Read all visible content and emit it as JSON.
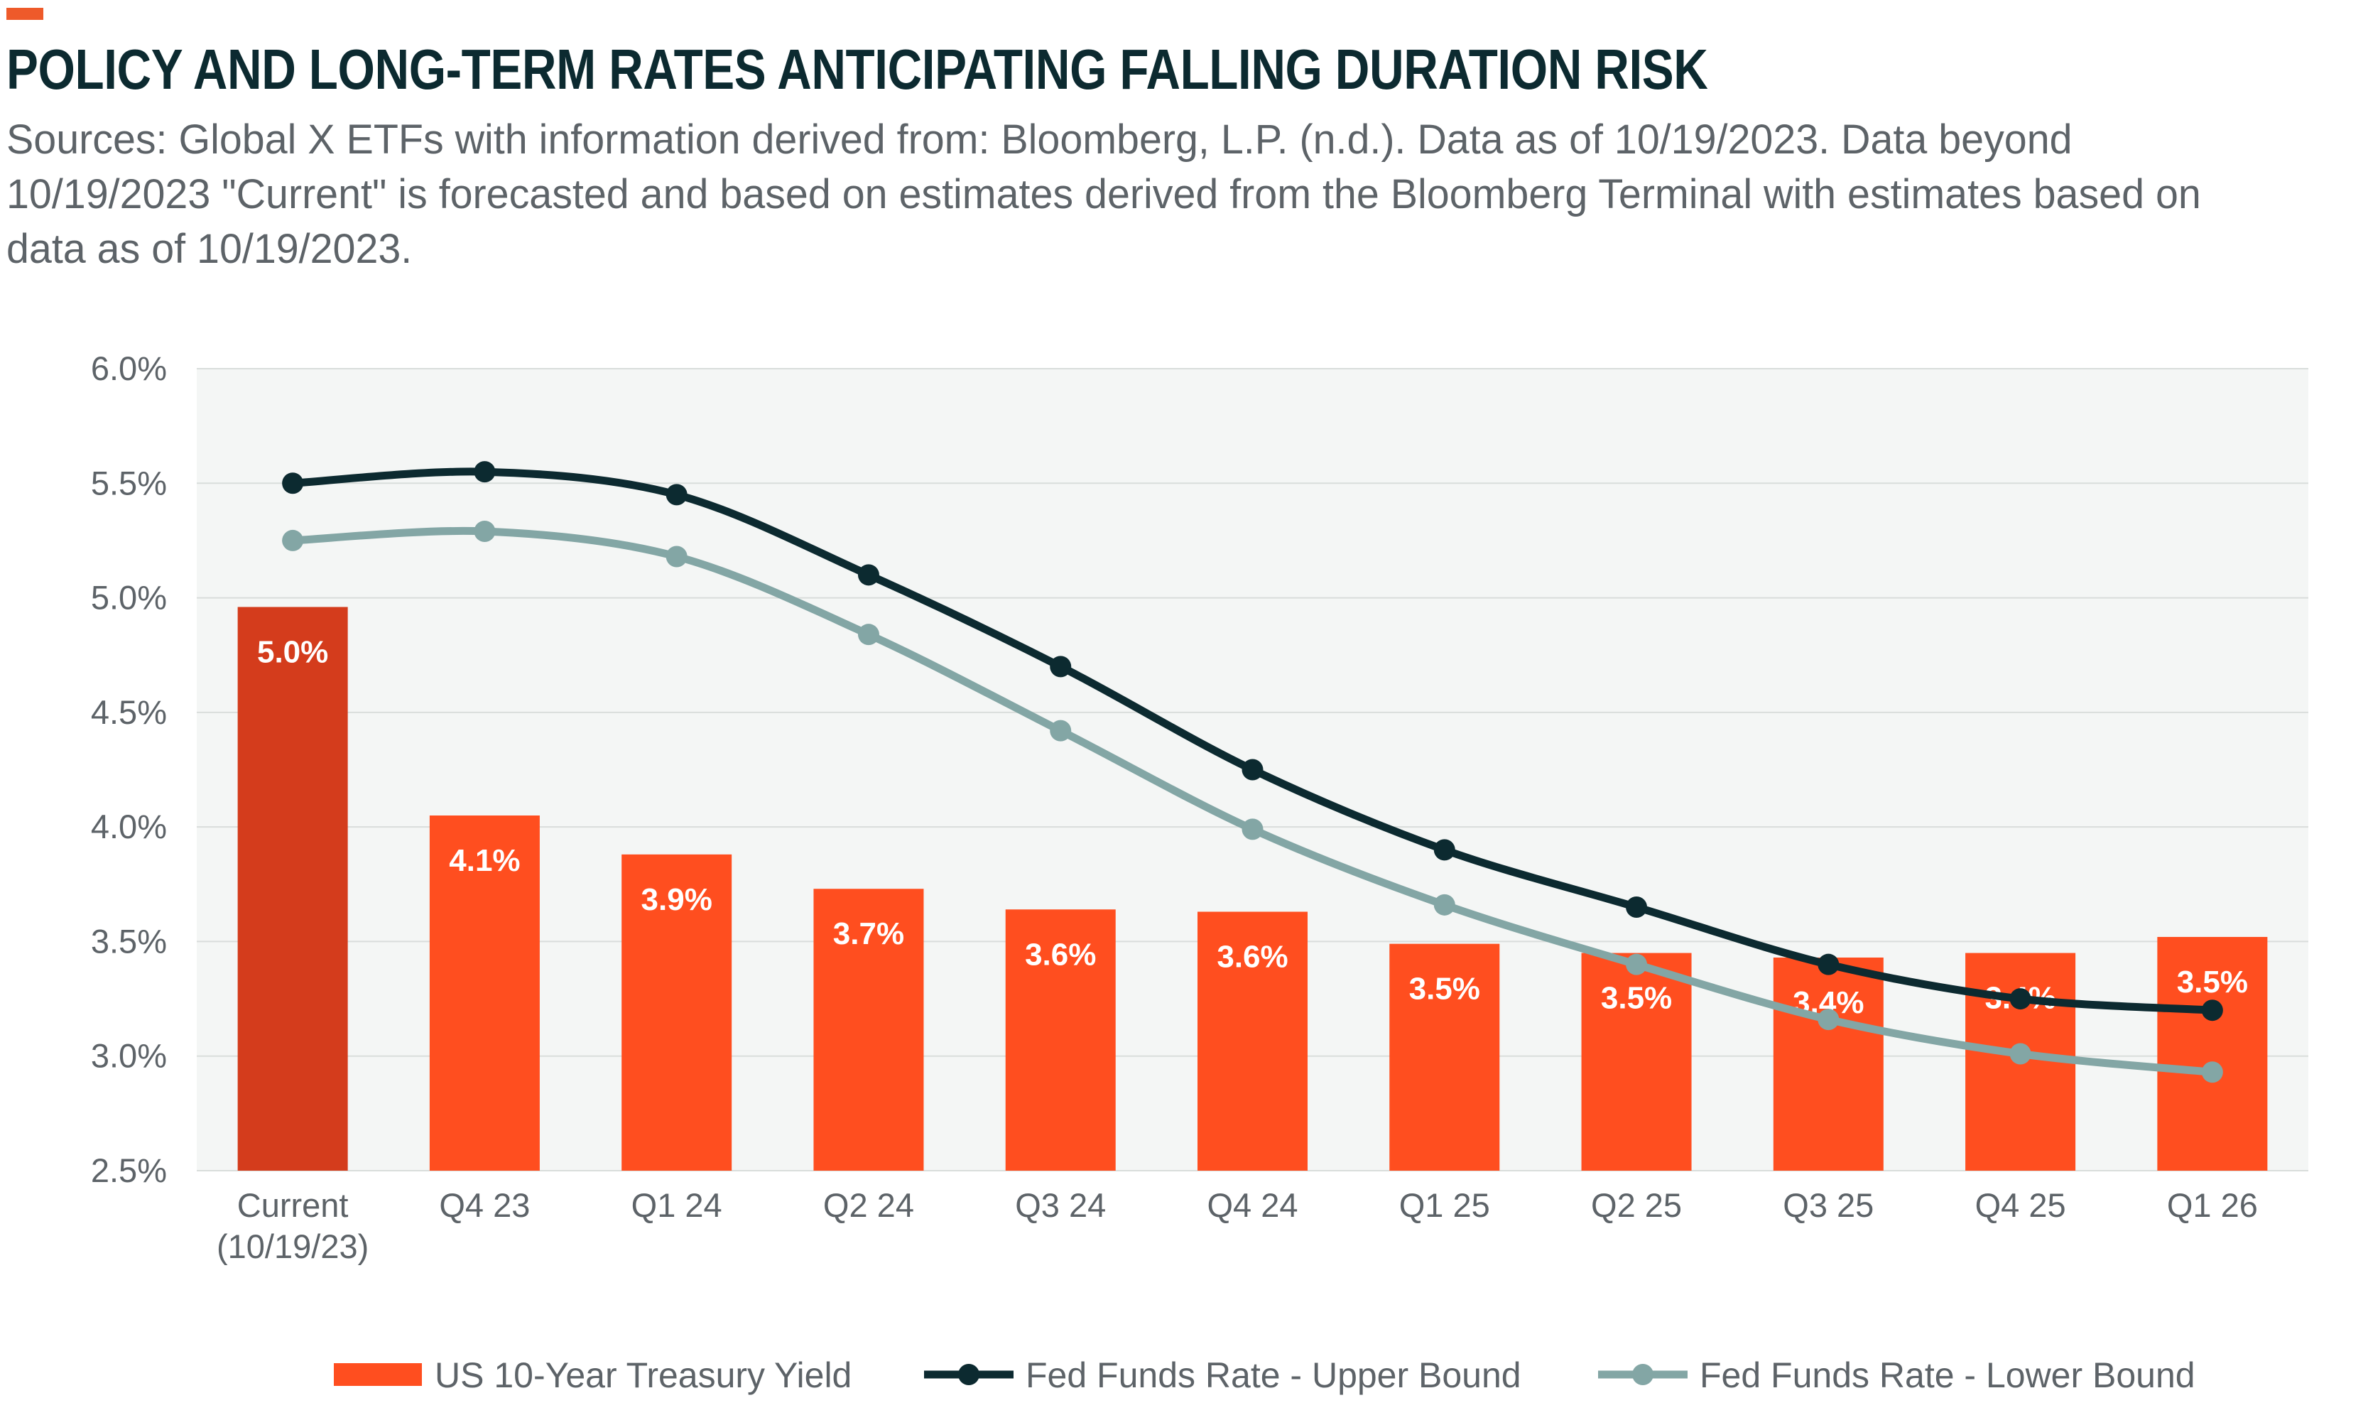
{
  "title": "POLICY AND LONG-TERM RATES ANTICIPATING FALLING DURATION RISK",
  "subtitle": "Sources: Global X ETFs with information derived from: Bloomberg, L.P. (n.d.). Data as of 10/19/2023. Data beyond 10/19/2023 \"Current\" is forecasted and based on estimates derived from the Bloomberg Terminal with estimates based on data as of 10/19/2023.",
  "colors": {
    "accent": "#ee5a2a",
    "title": "#0c2a30",
    "text": "#5d6368",
    "plot_background": "#f4f6f5",
    "gridline": "#d9dddb",
    "bar": "#ff4e1f",
    "bar_current": "#d43c1c",
    "upper_bound": "#0c2a30",
    "lower_bound": "#83a6a5"
  },
  "chart_data": {
    "type": "bar",
    "categories": [
      "Current (10/19/23)",
      "Q4 23",
      "Q1 24",
      "Q2 24",
      "Q3 24",
      "Q4 24",
      "Q1 25",
      "Q2 25",
      "Q3 25",
      "Q4 25",
      "Q1 26"
    ],
    "category_label_lines": [
      [
        "Current",
        "(10/19/23)"
      ],
      [
        "Q4 23"
      ],
      [
        "Q1 24"
      ],
      [
        "Q2 24"
      ],
      [
        "Q3 24"
      ],
      [
        "Q4 24"
      ],
      [
        "Q1 25"
      ],
      [
        "Q2 25"
      ],
      [
        "Q3 25"
      ],
      [
        "Q4 25"
      ],
      [
        "Q1 26"
      ]
    ],
    "series": [
      {
        "name": "US 10-Year Treasury Yield",
        "type": "bar",
        "values": [
          4.96,
          4.05,
          3.88,
          3.73,
          3.64,
          3.63,
          3.49,
          3.45,
          3.43,
          3.45,
          3.52
        ],
        "data_labels": [
          "5.0%",
          "4.1%",
          "3.9%",
          "3.7%",
          "3.6%",
          "3.6%",
          "3.5%",
          "3.5%",
          "3.4%",
          "3.4%",
          "3.5%"
        ],
        "highlight_first": true
      },
      {
        "name": "Fed Funds Rate - Upper Bound",
        "type": "line",
        "values": [
          5.5,
          5.55,
          5.45,
          5.1,
          4.7,
          4.25,
          3.9,
          3.65,
          3.4,
          3.25,
          3.2
        ]
      },
      {
        "name": "Fed Funds Rate - Lower Bound",
        "type": "line",
        "values": [
          5.25,
          5.29,
          5.18,
          4.84,
          4.42,
          3.99,
          3.66,
          3.4,
          3.16,
          3.01,
          2.93
        ]
      }
    ],
    "ylim": [
      2.5,
      6.0
    ],
    "yticks": [
      2.5,
      3.0,
      3.5,
      4.0,
      4.5,
      5.0,
      5.5,
      6.0
    ],
    "ytick_labels": [
      "2.5%",
      "3.0%",
      "3.5%",
      "4.0%",
      "4.5%",
      "5.0%",
      "5.5%",
      "6.0%"
    ],
    "xlabel": "",
    "ylabel": "",
    "grid": true,
    "legend_position": "bottom-center"
  }
}
